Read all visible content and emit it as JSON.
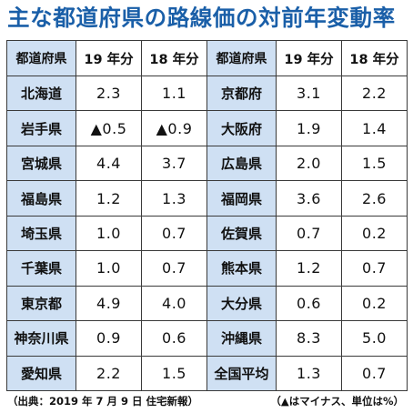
{
  "title": "主な都道府県の路線価の対前年変動率",
  "headers": {
    "pref": "都道府県",
    "y19": "19 年分",
    "y18": "18 年分"
  },
  "rows": [
    {
      "left": {
        "pref": "北海道",
        "y19": "2.3",
        "y18": "1.1"
      },
      "right": {
        "pref": "京都府",
        "y19": "3.1",
        "y18": "2.2"
      }
    },
    {
      "left": {
        "pref": "岩手県",
        "y19": "▲0.5",
        "y18": "▲0.9"
      },
      "right": {
        "pref": "大阪府",
        "y19": "1.9",
        "y18": "1.4"
      }
    },
    {
      "left": {
        "pref": "宮城県",
        "y19": "4.4",
        "y18": "3.7"
      },
      "right": {
        "pref": "広島県",
        "y19": "2.0",
        "y18": "1.5"
      }
    },
    {
      "left": {
        "pref": "福島県",
        "y19": "1.2",
        "y18": "1.3"
      },
      "right": {
        "pref": "福岡県",
        "y19": "3.6",
        "y18": "2.6"
      }
    },
    {
      "left": {
        "pref": "埼玉県",
        "y19": "1.0",
        "y18": "0.7"
      },
      "right": {
        "pref": "佐賀県",
        "y19": "0.7",
        "y18": "0.2"
      }
    },
    {
      "left": {
        "pref": "千葉県",
        "y19": "1.0",
        "y18": "0.7"
      },
      "right": {
        "pref": "熊本県",
        "y19": "1.2",
        "y18": "0.7"
      }
    },
    {
      "left": {
        "pref": "東京都",
        "y19": "4.9",
        "y18": "4.0"
      },
      "right": {
        "pref": "大分県",
        "y19": "0.6",
        "y18": "0.2"
      }
    },
    {
      "left": {
        "pref": "神奈川県",
        "y19": "0.9",
        "y18": "0.6"
      },
      "right": {
        "pref": "沖縄県",
        "y19": "8.3",
        "y18": "5.0"
      }
    },
    {
      "left": {
        "pref": "愛知県",
        "y19": "2.2",
        "y18": "1.5"
      },
      "right": {
        "pref": "全国平均",
        "y19": "1.3",
        "y18": "0.7"
      }
    }
  ],
  "source": "（出典：2019 年 7 月 9 日 住宅新報）",
  "note": "（▲はマイナス、単位は%）",
  "colors": {
    "title": "#1a5fa8",
    "pref_cell_bg": "#cfe0f3",
    "border": "#3a3a3a"
  }
}
